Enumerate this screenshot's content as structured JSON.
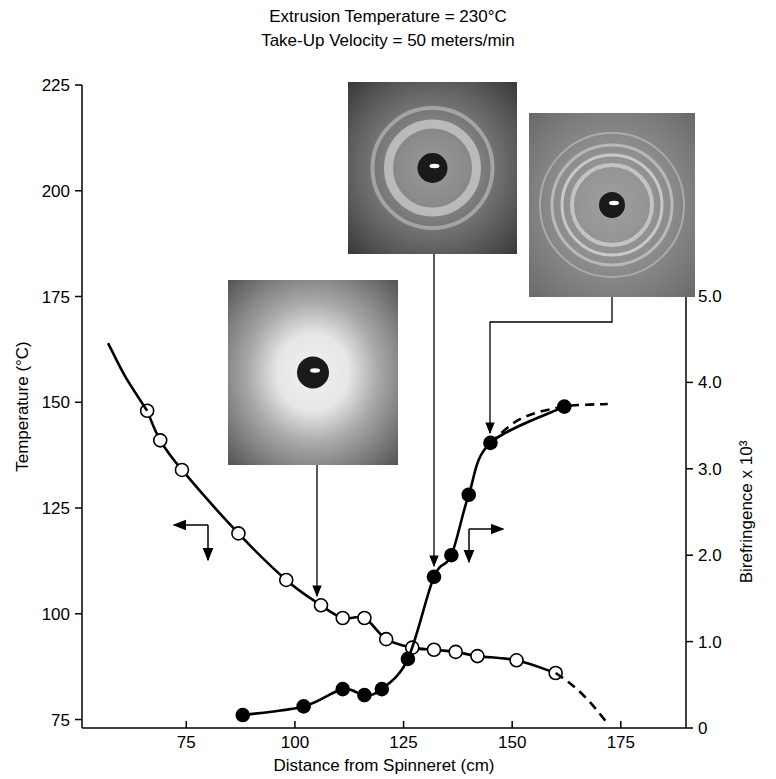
{
  "chart_data": {
    "type": "line",
    "title": "Extrusion Temperature = 230°C",
    "subtitle": "Take-Up Velocity = 50 meters/min",
    "x_label": "Distance from Spinneret (cm)",
    "y_label": "Temperature (°C)",
    "y2_label": "Birefringence x 10³",
    "xlim": [
      51,
      190
    ],
    "xticks": [
      75,
      100,
      125,
      150,
      175
    ],
    "ylim": [
      73,
      225
    ],
    "yticks": [
      75,
      100,
      125,
      150,
      175,
      200,
      225
    ],
    "y2lim": [
      0,
      5
    ],
    "y2ticks": [
      0,
      {
        "value": 1,
        "label": "1.0"
      },
      {
        "value": 2,
        "label": "2.0"
      },
      {
        "value": 3,
        "label": "3.0"
      },
      {
        "value": 4,
        "label": "4.0"
      },
      {
        "value": 5,
        "label": "5.0"
      }
    ],
    "grid": false,
    "series": [
      {
        "color": "#000000",
        "marker": "open-circle",
        "line_style": "solid",
        "x": [
          66,
          69,
          74,
          87,
          98,
          106,
          111,
          116,
          121,
          127,
          132,
          137,
          142,
          151,
          160
        ],
        "values": [
          148,
          141,
          134,
          119,
          108,
          102,
          99,
          99,
          94,
          92,
          91.5,
          91,
          90,
          89,
          86
        ]
      },
      {
        "color": "#000000",
        "marker": "none",
        "line_style": "solid",
        "x": [
          57,
          61,
          66
        ],
        "values": [
          164,
          156,
          148
        ]
      },
      {
        "color": "#000000",
        "marker": "none",
        "line_style": "dashed",
        "x": [
          160,
          164,
          168,
          172
        ],
        "values": [
          86,
          83,
          79,
          74
        ]
      },
      {
        "color": "#000000",
        "marker": "filled-circle",
        "line_style": "solid",
        "axis": "y2",
        "x": [
          88,
          102,
          111,
          116,
          120,
          126,
          132,
          136,
          140,
          145,
          162
        ],
        "values": [
          0.15,
          0.25,
          0.45,
          0.38,
          0.45,
          0.8,
          1.75,
          2.0,
          2.7,
          3.3,
          3.72
        ]
      },
      {
        "color": "#000000",
        "marker": "none",
        "line_style": "dashed",
        "axis": "y2",
        "x": [
          145,
          152,
          162,
          172
        ],
        "values": [
          3.3,
          3.58,
          3.72,
          3.75
        ]
      }
    ]
  }
}
